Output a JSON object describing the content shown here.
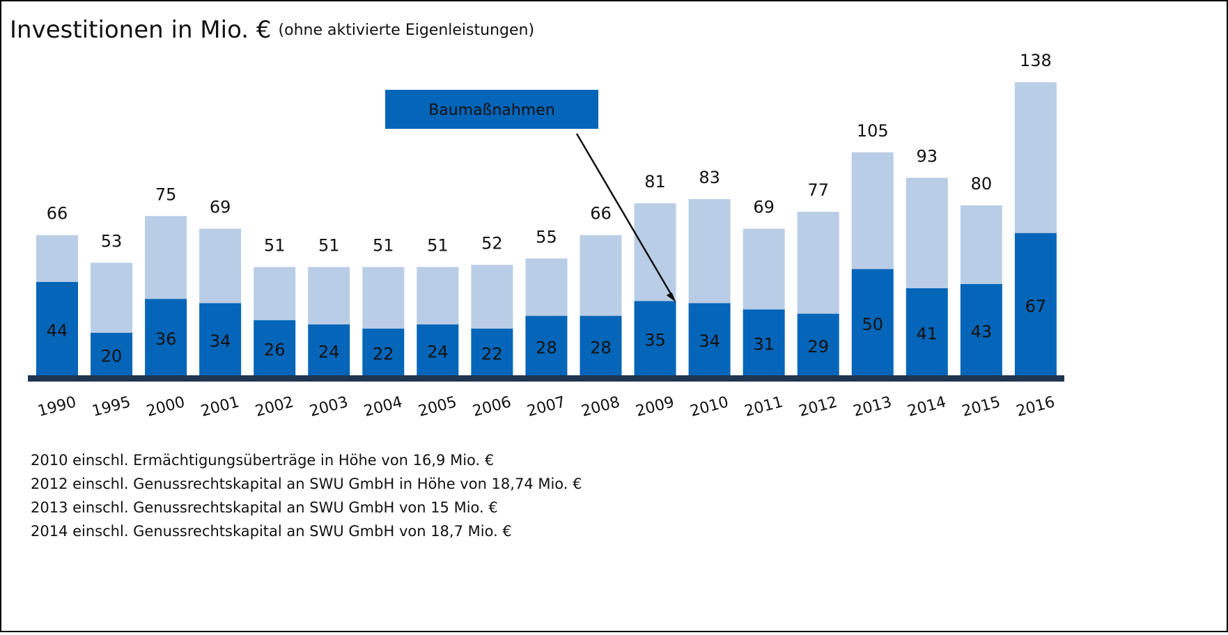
{
  "chart_data": {
    "type": "stacked_bar",
    "title": "Investitionen in Mio. €",
    "subtitle": "(ohne aktivierte Eigenleistungen)",
    "categories": [
      "1990",
      "1995",
      "2000",
      "2001",
      "2002",
      "2003",
      "2004",
      "2005",
      "2006",
      "2007",
      "2008",
      "2009",
      "2010",
      "2011",
      "2012",
      "2013",
      "2014",
      "2015",
      "2016"
    ],
    "series": [
      {
        "name": "Baumaßnahmen",
        "color": "#0565b8",
        "values": [
          44,
          20,
          36,
          34,
          26,
          24,
          22,
          24,
          22,
          28,
          28,
          35,
          34,
          31,
          29,
          50,
          41,
          43,
          67
        ]
      },
      {
        "color": "#b9cde6",
        "values": [
          22,
          33,
          39,
          35,
          25,
          27,
          29,
          27,
          30,
          27,
          38,
          46,
          49,
          38,
          48,
          55,
          52,
          37,
          71
        ]
      }
    ],
    "totals": [
      66,
      53,
      75,
      69,
      51,
      51,
      51,
      51,
      52,
      55,
      66,
      81,
      83,
      69,
      77,
      105,
      93,
      80,
      138
    ],
    "annotation": {
      "text": "Baumaßnahmen",
      "category_index": 11
    },
    "notes": [
      "2010 einschl. Ermächtigungsüberträge in Höhe von 16,9 Mio. €",
      "2012 einschl. Genussrechtskapital an SWU GmbH in Höhe von 18,74 Mio. €",
      "2013 einschl. Genussrechtskapital an SWU GmbH von 15 Mio. €",
      "2014 einschl. Genussrechtskapital an SWU GmbH von 18,7 Mio. €"
    ]
  }
}
